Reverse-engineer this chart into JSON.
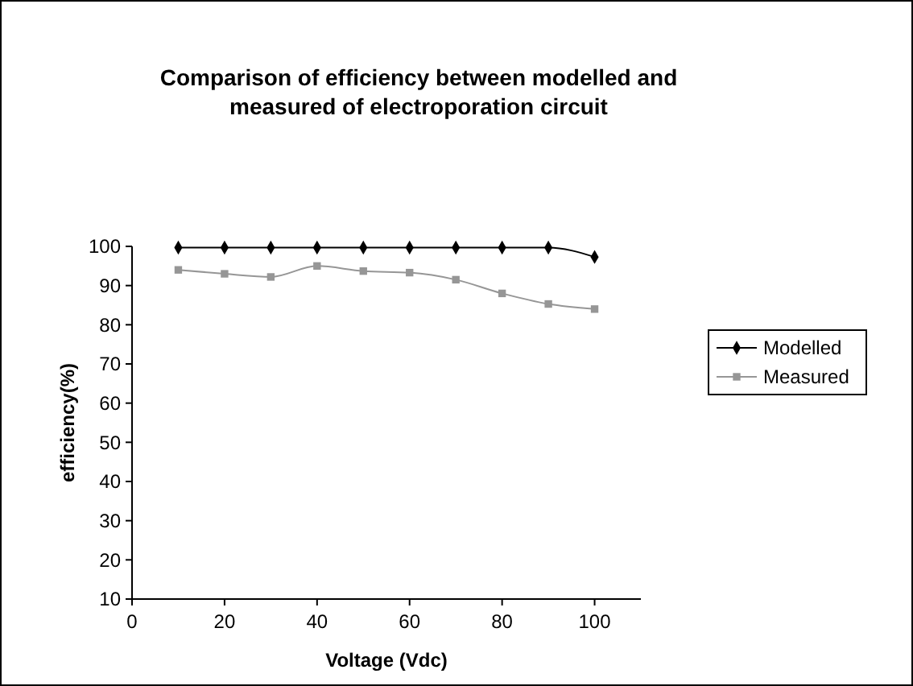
{
  "chart_data": {
    "type": "line",
    "title": "Comparison of efficiency between modelled and measured of electroporation circuit",
    "xlabel": "Voltage (Vdc)",
    "ylabel": "efficiency(%)",
    "x": [
      10,
      20,
      30,
      40,
      50,
      60,
      70,
      80,
      90,
      100
    ],
    "xlim": [
      0,
      110
    ],
    "xticks": [
      0,
      20,
      40,
      60,
      80,
      100
    ],
    "ylim": [
      10,
      100
    ],
    "yticks": [
      10,
      20,
      30,
      40,
      50,
      60,
      70,
      80,
      90,
      100
    ],
    "grid": false,
    "legend": "right",
    "series": [
      {
        "name": "Modelled",
        "color": "#000000",
        "marker": "diamond",
        "values": [
          99.7,
          99.7,
          99.7,
          99.7,
          99.7,
          99.7,
          99.7,
          99.7,
          99.7,
          97.3
        ]
      },
      {
        "name": "Measured",
        "color": "#969696",
        "marker": "square",
        "values": [
          94,
          93,
          92.2,
          95,
          93.7,
          93.3,
          91.5,
          88,
          85.3,
          84
        ]
      }
    ]
  }
}
